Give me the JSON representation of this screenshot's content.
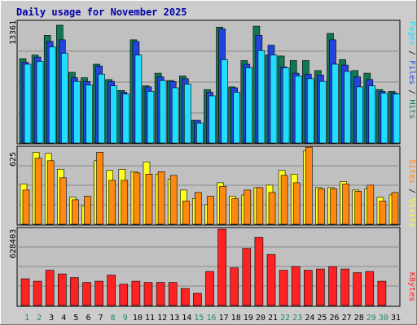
{
  "chart_data": {
    "type": "bar",
    "title": "Daily usage for November 2025",
    "categories": [
      "1",
      "2",
      "3",
      "4",
      "5",
      "6",
      "7",
      "8",
      "9",
      "10",
      "11",
      "12",
      "13",
      "14",
      "15",
      "16",
      "17",
      "18",
      "19",
      "20",
      "21",
      "22",
      "23",
      "24",
      "25",
      "26",
      "27",
      "28",
      "29",
      "30",
      "31"
    ],
    "weekend_days": [
      "1",
      "2",
      "8",
      "9",
      "15",
      "16",
      "22",
      "23",
      "29",
      "30"
    ],
    "top_panel": {
      "max_label": "13361",
      "ymax": 13361,
      "series": [
        {
          "name": "Hits",
          "color": "#117755",
          "values": [
            9300,
            9700,
            11900,
            13000,
            7800,
            7200,
            8700,
            7000,
            5800,
            11400,
            6300,
            7700,
            6900,
            7400,
            2500,
            5900,
            12800,
            6200,
            9100,
            12900,
            9700,
            9600,
            9100,
            9100,
            8000,
            12100,
            9200,
            8000,
            7700,
            5900,
            5700
          ]
        },
        {
          "name": "Files",
          "color": "#2244dd",
          "values": [
            8900,
            9500,
            11200,
            11400,
            7200,
            6800,
            8500,
            6800,
            5600,
            11200,
            6200,
            7300,
            6800,
            7100,
            2500,
            5600,
            12600,
            6100,
            8700,
            11900,
            10800,
            8400,
            7700,
            7600,
            7500,
            11400,
            8600,
            7300,
            7000,
            5700,
            5500
          ]
        },
        {
          "name": "Pages",
          "color": "#22ddff",
          "values": [
            8700,
            9000,
            10600,
            9900,
            6800,
            6400,
            7600,
            6300,
            5400,
            9700,
            5700,
            6900,
            6100,
            6500,
            2200,
            5200,
            9200,
            5600,
            8300,
            10200,
            9700,
            8300,
            7400,
            7100,
            6800,
            8700,
            7900,
            6200,
            6300,
            5500,
            5400
          ]
        }
      ]
    },
    "middle_panel": {
      "max_label": "625",
      "ymax": 625,
      "series": [
        {
          "name": "Visits",
          "color": "#ffff22",
          "values": [
            330,
            590,
            580,
            450,
            220,
            150,
            520,
            440,
            450,
            430,
            510,
            410,
            370,
            280,
            210,
            160,
            340,
            230,
            240,
            300,
            320,
            440,
            410,
            600,
            300,
            300,
            350,
            280,
            290,
            220,
            240
          ]
        },
        {
          "name": "Sites",
          "color": "#ff8811",
          "values": [
            280,
            540,
            520,
            380,
            200,
            230,
            590,
            360,
            360,
            420,
            410,
            430,
            400,
            190,
            260,
            230,
            310,
            210,
            280,
            300,
            260,
            400,
            340,
            630,
            290,
            290,
            330,
            270,
            320,
            190,
            260
          ]
        }
      ]
    },
    "bottom_panel": {
      "max_label": "628403",
      "ymax": 628403,
      "series": [
        {
          "name": "KBytes",
          "color": "#ff2222",
          "values": [
            220000,
            200000,
            290000,
            260000,
            230000,
            190000,
            200000,
            250000,
            175000,
            200000,
            190000,
            190000,
            190000,
            140000,
            100000,
            280000,
            628403,
            310000,
            470000,
            560000,
            420000,
            290000,
            320000,
            290000,
            300000,
            320000,
            300000,
            270000,
            280000,
            200000,
            0
          ]
        }
      ]
    },
    "right_labels": {
      "top": [
        "Hits",
        "Files",
        "Pages"
      ],
      "middle": [
        "Visits",
        "Sites"
      ],
      "bottom": [
        "KBytes"
      ]
    },
    "separator": " / "
  },
  "colors": {
    "frame": "#cccccc",
    "plot_bg": "#c0c0c0",
    "title": "#0000aa",
    "grid": "#888888",
    "weekday_label": "#000000",
    "weekend_label": "#228866"
  }
}
